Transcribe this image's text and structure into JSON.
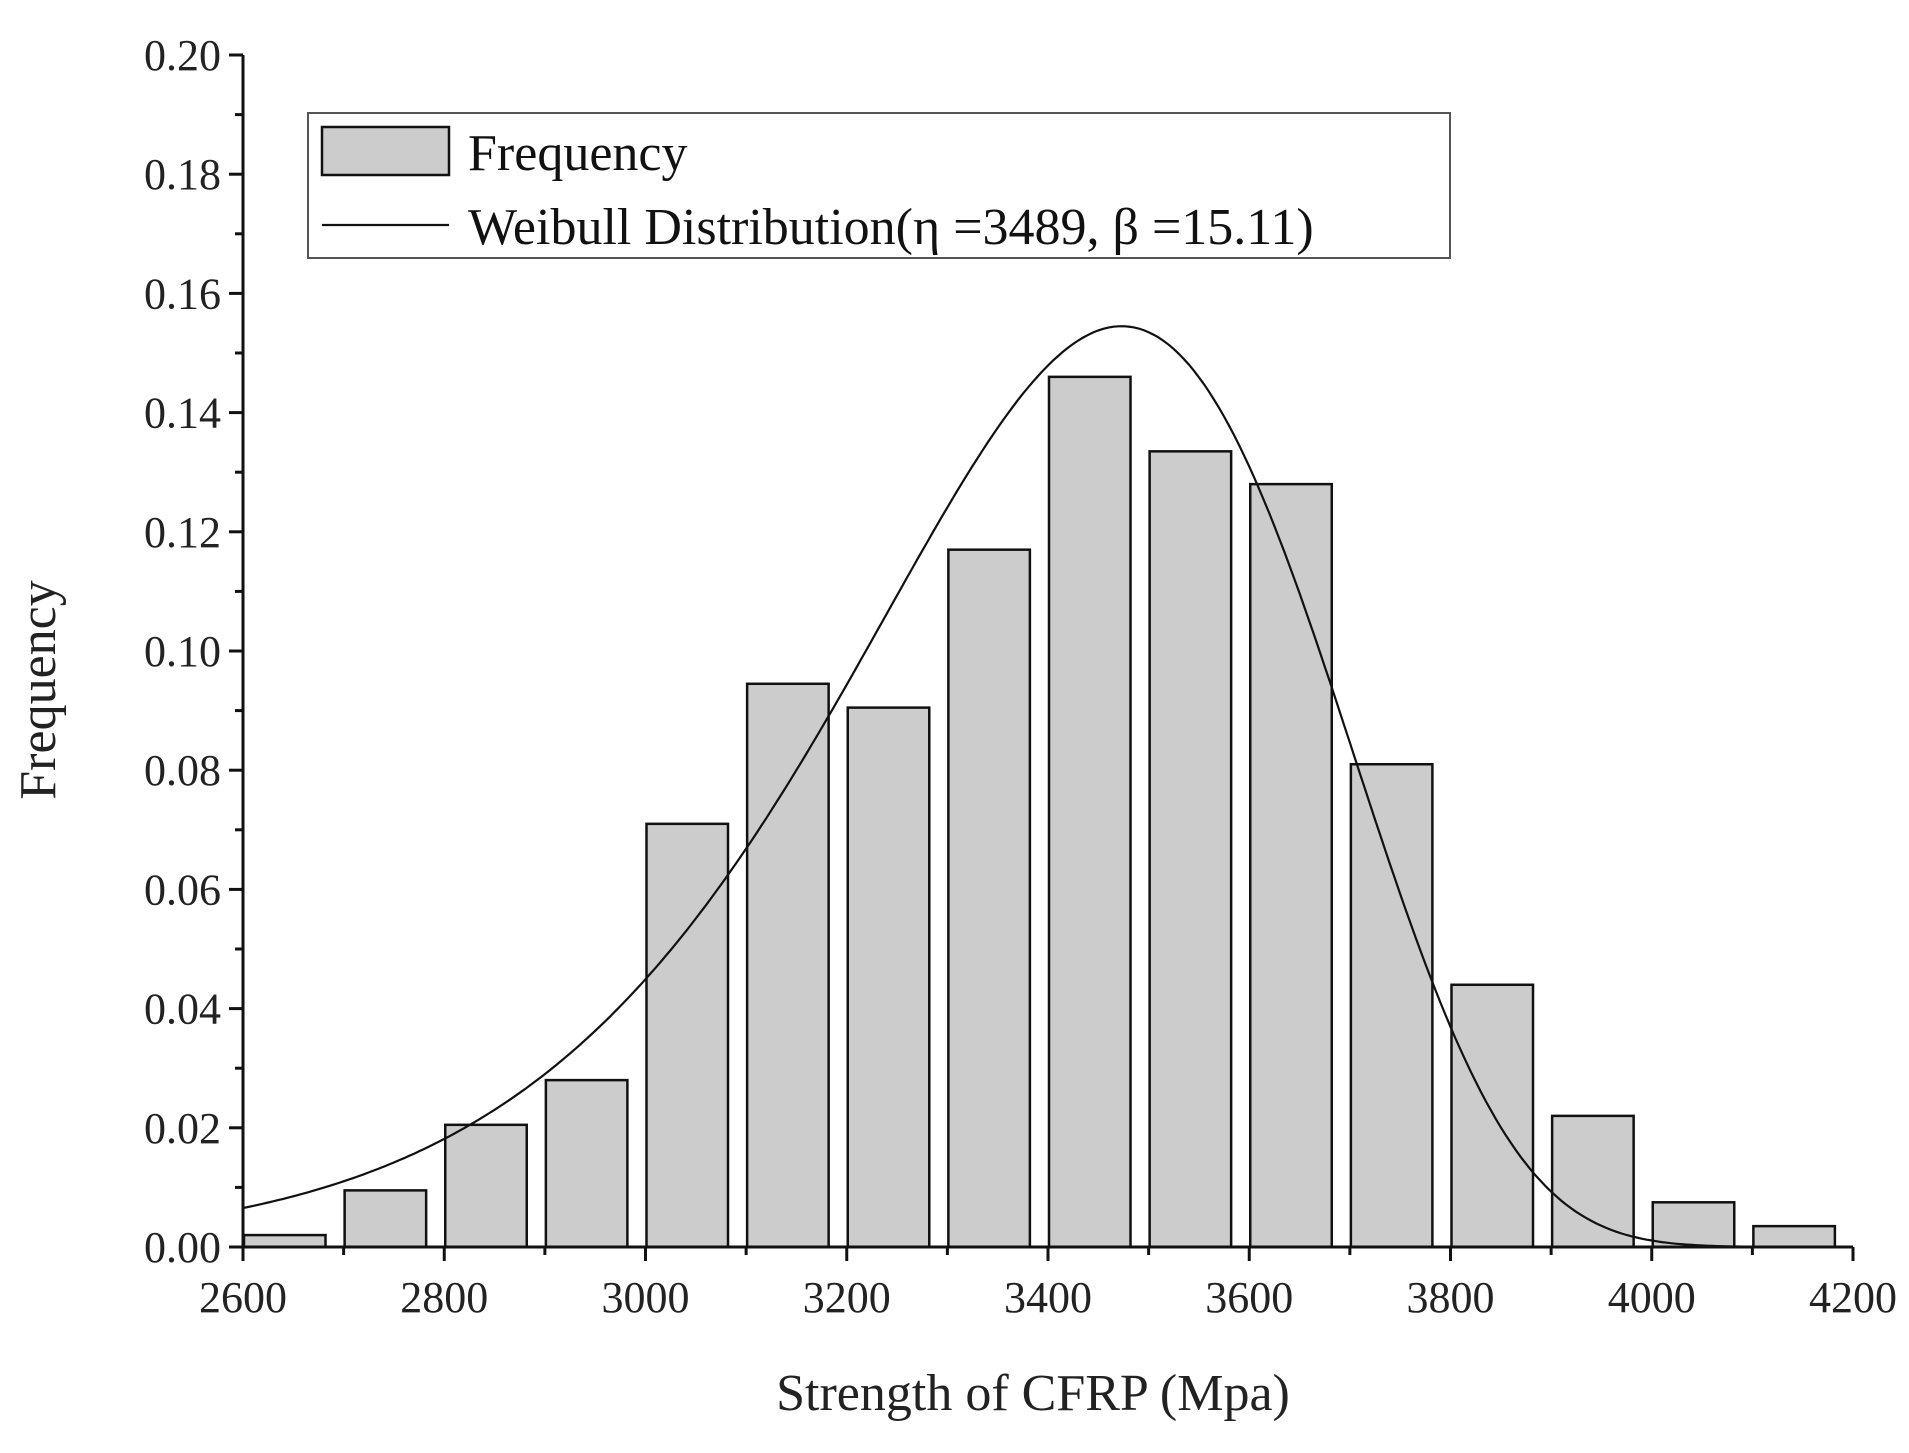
{
  "chart_data": {
    "type": "bar",
    "title": "",
    "xlabel": "Strength of CFRP (Mpa)",
    "ylabel": "Frequency",
    "xlim": [
      2600,
      4200
    ],
    "ylim": [
      0,
      0.2
    ],
    "x_ticks": [
      "2600",
      "2800",
      "3000",
      "3200",
      "3400",
      "3600",
      "3800",
      "4000",
      "4200"
    ],
    "y_ticks": [
      "0.00",
      "0.02",
      "0.04",
      "0.06",
      "0.08",
      "0.10",
      "0.12",
      "0.14",
      "0.16",
      "0.18",
      "0.20"
    ],
    "bin_width": 100,
    "series": [
      {
        "name": "Frequency",
        "type": "bar",
        "bin_starts": [
          2600,
          2700,
          2800,
          2900,
          3000,
          3100,
          3200,
          3300,
          3400,
          3500,
          3600,
          3700,
          3800,
          3900,
          4000,
          4100
        ],
        "values": [
          0.002,
          0.0095,
          0.0205,
          0.028,
          0.071,
          0.0945,
          0.0905,
          0.117,
          0.146,
          0.1335,
          0.128,
          0.081,
          0.044,
          0.022,
          0.0075,
          0.0035
        ]
      },
      {
        "name": "Weibull Distribution(η =3489, β =15.11)",
        "type": "line",
        "eta": 3489,
        "beta": 15.11,
        "x_range": [
          2600,
          4150
        ],
        "peak": 0.1545
      }
    ],
    "legend": {
      "position": "top-left",
      "entries": [
        "Frequency",
        "Weibull Distribution(η =3489, β =15.11)"
      ]
    }
  }
}
